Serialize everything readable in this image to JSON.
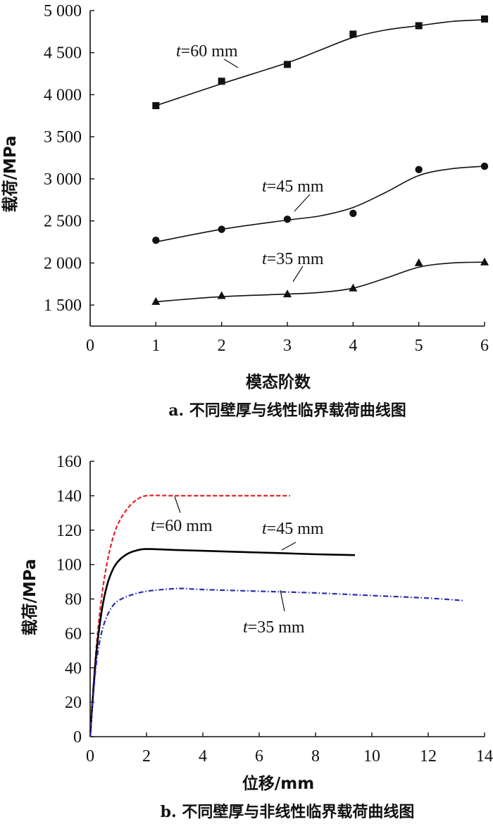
{
  "chart_data": [
    {
      "type": "line",
      "caption": "a. 不同壁厚与线性临界载荷曲线图",
      "xlabel": "模态阶数",
      "ylabel": "载荷/MPa",
      "xlim": [
        0,
        6
      ],
      "ylim": [
        1250,
        5000
      ],
      "xticks": [
        0,
        1,
        2,
        3,
        4,
        5,
        6
      ],
      "xtick_labels": [
        "0",
        "1",
        "2",
        "3",
        "4",
        "5",
        "6"
      ],
      "yticks": [
        1500,
        2000,
        2500,
        3000,
        3500,
        4000,
        4500,
        5000
      ],
      "ytick_labels": [
        "1 500",
        "2 000",
        "2 500",
        "3 000",
        "3 500",
        "4 000",
        "4 500",
        "5 000"
      ],
      "grid": false,
      "series": [
        {
          "name": "t=60 mm",
          "name_parts": [
            "t",
            "=60 mm"
          ],
          "marker": "square",
          "x": [
            1,
            2,
            3,
            4,
            5,
            6
          ],
          "y": [
            3870,
            4160,
            4360,
            4720,
            4820,
            4900
          ],
          "curve_x": [
            1,
            2,
            3,
            3.5,
            4,
            4.5,
            5,
            5.5,
            6
          ],
          "curve_y": [
            3870,
            4130,
            4380,
            4530,
            4680,
            4770,
            4820,
            4870,
            4890
          ]
        },
        {
          "name": "t=45 mm",
          "name_parts": [
            "t",
            "=45 mm"
          ],
          "marker": "circle",
          "x": [
            1,
            2,
            3,
            4,
            5,
            6
          ],
          "y": [
            2270,
            2400,
            2520,
            2590,
            3110,
            3150
          ],
          "curve_x": [
            1,
            2,
            3,
            3.5,
            4,
            4.5,
            5,
            5.5,
            6
          ],
          "curve_y": [
            2250,
            2400,
            2510,
            2560,
            2660,
            2840,
            3040,
            3120,
            3150
          ]
        },
        {
          "name": "t=35 mm",
          "name_parts": [
            "t",
            "=35 mm"
          ],
          "marker": "triangle",
          "x": [
            1,
            2,
            3,
            4,
            5,
            6
          ],
          "y": [
            1540,
            1610,
            1630,
            1700,
            2000,
            2010
          ],
          "curve_x": [
            1,
            2,
            3,
            3.5,
            4,
            4.5,
            5,
            5.5,
            6
          ],
          "curve_y": [
            1540,
            1600,
            1630,
            1650,
            1700,
            1820,
            1950,
            2000,
            2010
          ]
        }
      ]
    },
    {
      "type": "line",
      "caption": "b. 不同壁厚与非线性临界载荷曲线图",
      "xlabel": "位移/mm",
      "ylabel": "载荷/MPa",
      "xlim": [
        0,
        14
      ],
      "ylim": [
        0,
        160
      ],
      "xticks": [
        0,
        2,
        4,
        6,
        8,
        10,
        12,
        14
      ],
      "xtick_labels": [
        "0",
        "2",
        "4",
        "6",
        "8",
        "10",
        "12",
        "14"
      ],
      "yticks": [
        0,
        20,
        40,
        60,
        80,
        100,
        120,
        140,
        160
      ],
      "ytick_labels": [
        "0",
        "20",
        "40",
        "60",
        "80",
        "100",
        "120",
        "140",
        "160"
      ],
      "grid": false,
      "series": [
        {
          "name": "t=60 mm",
          "name_parts": [
            "t",
            "=60 mm"
          ],
          "color": "#e0262b",
          "dash": "dashed",
          "x": [
            0,
            0.2,
            0.4,
            0.6,
            0.8,
            1.0,
            1.3,
            1.6,
            2.0,
            3,
            4,
            5,
            6,
            7.1
          ],
          "y": [
            0,
            48,
            80,
            101,
            115,
            124,
            132,
            137,
            140,
            140,
            140,
            140,
            140,
            140
          ]
        },
        {
          "name": "t=45 mm",
          "name_parts": [
            "t",
            "=45 mm"
          ],
          "color": "#000000",
          "dash": "solid",
          "x": [
            0,
            0.2,
            0.4,
            0.6,
            0.8,
            1.0,
            1.3,
            1.6,
            2.0,
            3,
            4,
            5,
            6,
            7,
            8,
            9.4
          ],
          "y": [
            0,
            45,
            72,
            88,
            97,
            102,
            106,
            108,
            109,
            108.5,
            108,
            107.5,
            107,
            106.5,
            106,
            105.5
          ]
        },
        {
          "name": "t=35 mm",
          "name_parts": [
            "t",
            "=35 mm"
          ],
          "color": "#2b2bb0",
          "dash": "dashdot",
          "x": [
            0,
            0.2,
            0.4,
            0.6,
            0.8,
            1.0,
            1.4,
            2,
            3,
            3.4,
            4,
            6,
            8,
            10,
            12,
            13.3
          ],
          "y": [
            0,
            40,
            60,
            70,
            76,
            79,
            82,
            84.5,
            86,
            86,
            85.5,
            84.5,
            83.5,
            82,
            80.5,
            79
          ]
        }
      ]
    }
  ]
}
